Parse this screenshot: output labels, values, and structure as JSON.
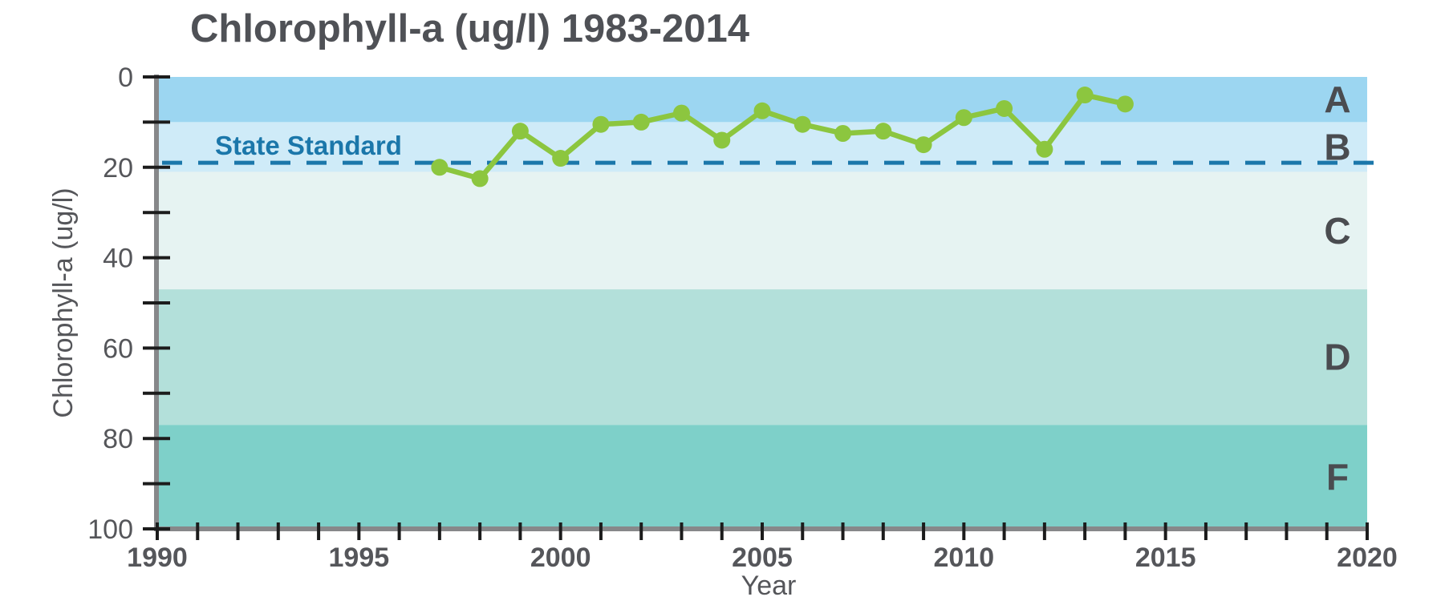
{
  "chart": {
    "title": "Chlorophyll-a (ug/l) 1983-2014"
  },
  "chart_data": {
    "type": "line",
    "title": "Chlorophyll-a (ug/l) 1983-2014",
    "xlabel": "Year",
    "ylabel": "Chlorophyll-a (ug/l)",
    "xlim": [
      1990,
      2020
    ],
    "ylim": [
      0,
      100
    ],
    "y_axis_inverted": true,
    "grid": false,
    "x_major_ticks": [
      1990,
      1995,
      2000,
      2005,
      2010,
      2015,
      2020
    ],
    "x_minor_tick_step": 1,
    "y_major_ticks": [
      0,
      20,
      40,
      60,
      80,
      100
    ],
    "y_minor_tick_step": 10,
    "grade_bands": [
      {
        "label": "A",
        "from": 0,
        "to": 10,
        "color": "#9cd6f1"
      },
      {
        "label": "B",
        "from": 10,
        "to": 21,
        "color": "#cfebf8"
      },
      {
        "label": "C",
        "from": 21,
        "to": 47,
        "color": "#e6f3f2"
      },
      {
        "label": "D",
        "from": 47,
        "to": 77,
        "color": "#b3e0da"
      },
      {
        "label": "F",
        "from": 77,
        "to": 100,
        "color": "#7ed0c9"
      }
    ],
    "reference_line": {
      "label": "State Standard",
      "value": 19,
      "color": "#1b77aa",
      "style": "dashed"
    },
    "series": [
      {
        "name": "Chlorophyll-a (ug/l)",
        "color": "#8cc63f",
        "x": [
          1997,
          1998,
          1999,
          2000,
          2001,
          2002,
          2003,
          2004,
          2005,
          2006,
          2007,
          2008,
          2009,
          2010,
          2011,
          2012,
          2013,
          2014
        ],
        "y": [
          20,
          22.5,
          12,
          18,
          10.5,
          10,
          8,
          14,
          7.5,
          10.5,
          12.5,
          12,
          15,
          9,
          7,
          16,
          4,
          6
        ]
      }
    ]
  },
  "colors": {
    "title_text": "#4f5156",
    "axis_text": "#55565a",
    "spine": "#87888a",
    "tick": "#1c1c1c",
    "band_label_text": "#4a4c50",
    "series_green": "#8cc63f",
    "standard_blue": "#1b77aa"
  }
}
